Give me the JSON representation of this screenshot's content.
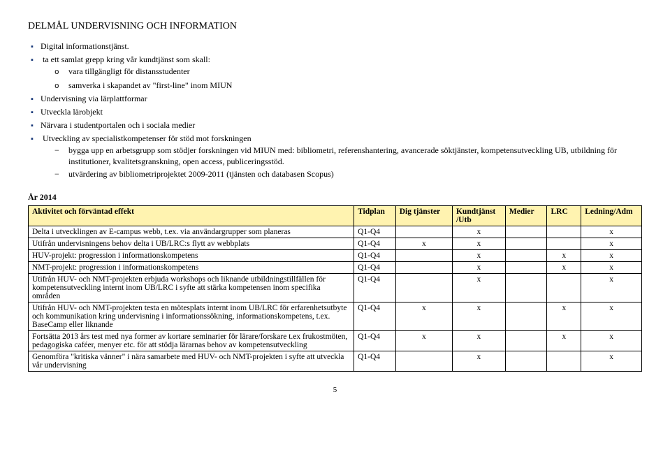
{
  "section_heading_prefix": "D",
  "section_heading_smallcaps": "ELMÅL ",
  "section_heading_prefix2": "U",
  "section_heading_smallcaps2": "NDERVISNING OCH INFORMATION",
  "bullets": {
    "b1": "Digital informationstjänst.",
    "b2": "ta ett samlat grepp kring vår kundtjänst som skall:",
    "b2_sub1": "vara tillgängligt för distansstudenter",
    "b2_sub2": "samverka i skapandet av \"first-line\" inom MIUN",
    "b3": "Undervisning via lärplattformar",
    "b4": "Utveckla lärobjekt",
    "b5": "Närvara i studentportalen och i sociala medier",
    "b6": "Utveckling av specialistkompetenser för stöd mot forskningen",
    "b6_d1": "bygga upp en arbetsgrupp som stödjer forskningen vid MIUN med: bibliometri, referenshantering, avancerade söktjänster, kompetensutveckling UB, utbildning för institutioner, kvalitetsgranskning, open access, publiceringsstöd.",
    "b6_d2": "utvärdering av bibliometriprojektet 2009-2011 (tjänsten och databasen Scopus)"
  },
  "year_label": "År 2014",
  "table": {
    "headers": {
      "activity": "Aktivitet och förväntad effekt",
      "tidplan": "Tidplan",
      "dig": "Dig tjänster",
      "kund": "Kundtjänst /Utb",
      "medier": "Medier",
      "lrc": "LRC",
      "ledning": "Ledning/Adm"
    },
    "rows": [
      {
        "activity": "Delta i utvecklingen av E-campus webb, t.ex. via användargrupper som planeras",
        "tidplan": "Q1-Q4",
        "dig": "",
        "kund": "x",
        "medier": "",
        "lrc": "",
        "ledning": "x"
      },
      {
        "activity": "Utifrån undervisningens behov delta i UB/LRC:s flytt av webbplats",
        "tidplan": "Q1-Q4",
        "dig": "x",
        "kund": "x",
        "medier": "",
        "lrc": "",
        "ledning": "x"
      },
      {
        "activity": "HUV-projekt: progression i informationskompetens",
        "tidplan": "Q1-Q4",
        "dig": "",
        "kund": "x",
        "medier": "",
        "lrc": "x",
        "ledning": "x"
      },
      {
        "activity": "NMT-projekt: progression i informationskompetens",
        "tidplan": "Q1-Q4",
        "dig": "",
        "kund": "x",
        "medier": "",
        "lrc": "x",
        "ledning": "x"
      },
      {
        "activity": "Utifrån HUV- och NMT-projekten erbjuda workshops och liknande utbildningstillfällen för kompetensutveckling internt inom UB/LRC i syfte att stärka kompetensen inom specifika områden",
        "tidplan": "Q1-Q4",
        "dig": "",
        "kund": "x",
        "medier": "",
        "lrc": "",
        "ledning": "x"
      },
      {
        "activity": "Utifrån HUV- och NMT-projekten testa en mötesplats internt inom UB/LRC för erfarenhetsutbyte och kommunikation kring undervisning i informationssökning, informationskompetens, t.ex. BaseCamp eller liknande",
        "tidplan": "Q1-Q4",
        "dig": "x",
        "kund": "x",
        "medier": "",
        "lrc": "x",
        "ledning": "x"
      },
      {
        "activity": "Fortsätta 2013 års test med nya former av kortare seminarier för lärare/forskare t.ex frukostmöten, pedagogiska caféer, menyer etc. för att stödja lärarnas behov av kompetensutveckling",
        "tidplan": "Q1-Q4",
        "dig": "x",
        "kund": "x",
        "medier": "",
        "lrc": "x",
        "ledning": "x"
      },
      {
        "activity": "Genomföra \"kritiska vänner\" i nära samarbete med HUV- och NMT-projekten i syfte att utveckla vår undervisning",
        "tidplan": "Q1-Q4",
        "dig": "",
        "kund": "x",
        "medier": "",
        "lrc": "",
        "ledning": "x"
      }
    ]
  },
  "page_number": "5"
}
